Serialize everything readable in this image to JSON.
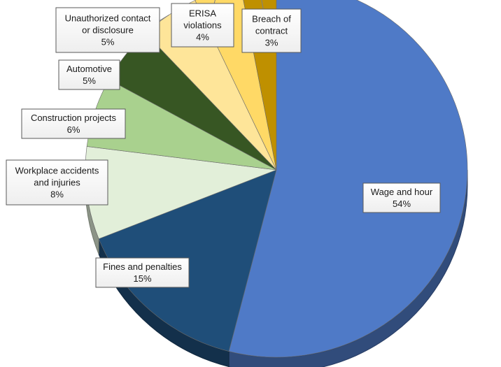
{
  "chart_data": {
    "type": "pie",
    "title": "",
    "slices": [
      {
        "label": "Wage and hour",
        "value": 54,
        "value_label": "54%",
        "color": "#4f7ac7"
      },
      {
        "label": "Fines and penalties",
        "value": 15,
        "value_label": "15%",
        "color": "#1f4e79"
      },
      {
        "label": "Workplace accidents and injuries",
        "value": 8,
        "value_label": "8%",
        "color": "#e2efd9"
      },
      {
        "label": "Construction projects",
        "value": 6,
        "value_label": "6%",
        "color": "#a9d18e"
      },
      {
        "label": "Automotive",
        "value": 5,
        "value_label": "5%",
        "color": "#375623"
      },
      {
        "label": "Unauthorized contact or disclosure",
        "value": 5,
        "value_label": "5%",
        "color": "#fee599"
      },
      {
        "label": "ERISA violations",
        "value": 4,
        "value_label": "4%",
        "color": "#ffd966"
      },
      {
        "label": "Breach of contract",
        "value": 3,
        "value_label": "3%",
        "color": "#bf9000"
      }
    ],
    "legend": "none",
    "style": "3d-tilted"
  }
}
